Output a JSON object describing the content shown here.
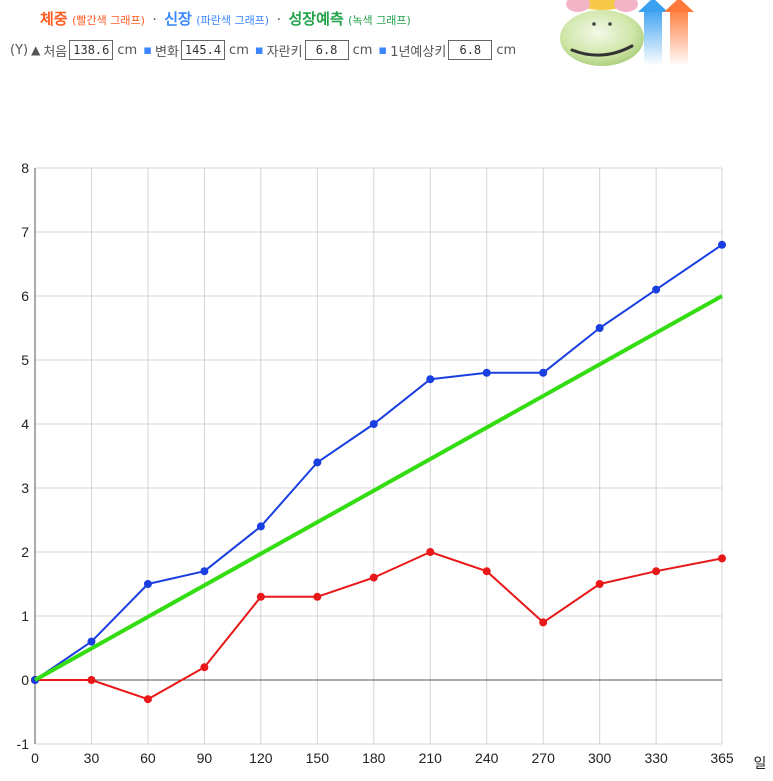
{
  "header": {
    "legend": {
      "weight_label": "체중",
      "weight_sub": "(빨간색 그래프)",
      "height_label": "신장",
      "height_sub": "(파란색 그래프)",
      "predict_label": "성장예측",
      "predict_sub": "(녹색 그래프)",
      "separator": "·"
    },
    "stats": {
      "y_label": "(Y)",
      "up_symbol": "▲",
      "initial_label": "처음",
      "initial_value": "138.6",
      "change_label": "변화",
      "change_value": "145.4",
      "grown_label": "자란키",
      "grown_value": "6.8",
      "yearly_label": "1년예상키",
      "yearly_value": "6.8",
      "unit": "cm"
    }
  },
  "chart_data": {
    "type": "line",
    "x": [
      0,
      30,
      60,
      90,
      120,
      150,
      180,
      210,
      240,
      270,
      300,
      330,
      365
    ],
    "x_ticks": [
      "0",
      "30",
      "60",
      "90",
      "120",
      "150",
      "180",
      "210",
      "240",
      "270",
      "300",
      "330",
      "365"
    ],
    "y_ticks": [
      "-1",
      "0",
      "1",
      "2",
      "3",
      "4",
      "5",
      "6",
      "7",
      "8"
    ],
    "xlim": [
      0,
      365
    ],
    "ylim": [
      -1,
      8
    ],
    "xlabel": "일",
    "grid": true,
    "series": [
      {
        "color": "#e81818",
        "values": [
          0,
          0,
          -0.3,
          0.2,
          1.3,
          1.3,
          1.6,
          2.0,
          1.7,
          0.9,
          1.5,
          1.7,
          1.9
        ],
        "markers": true
      },
      {
        "color": "#1a3fe0",
        "values": [
          0,
          0.6,
          1.5,
          1.7,
          2.4,
          3.4,
          4.0,
          4.7,
          4.8,
          4.8,
          5.5,
          6.1,
          6.8
        ],
        "markers": true
      },
      {
        "color": "#33dd11",
        "x": [
          0,
          365
        ],
        "values": [
          0,
          6.0
        ],
        "markers": false
      }
    ]
  }
}
